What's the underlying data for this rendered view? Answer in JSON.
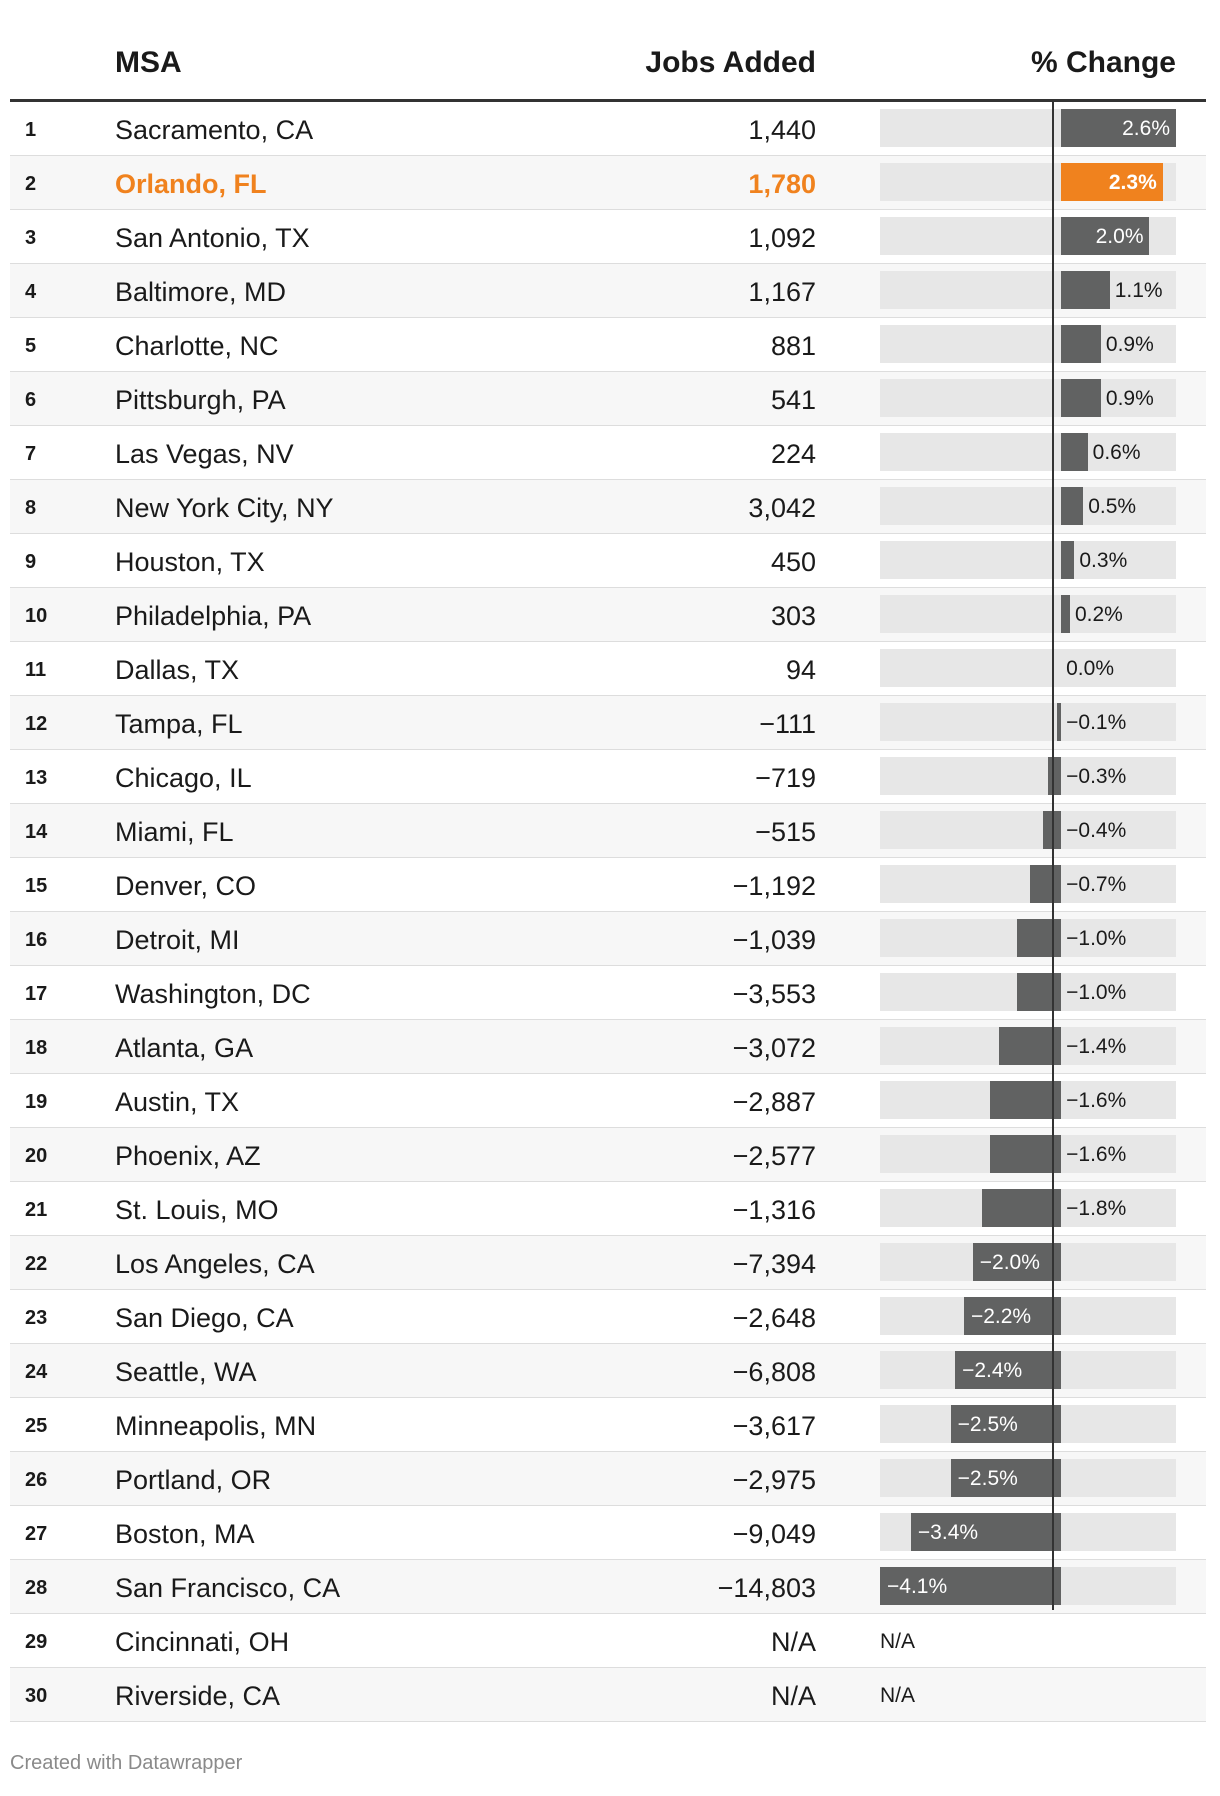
{
  "table": {
    "columns": {
      "msa": "MSA",
      "jobs": "Jobs Added",
      "pct": "% Change"
    },
    "highlight_color": "#f0821e",
    "bar_color": "#616262",
    "bar_bg_color": "#e7e7e7"
  },
  "chart_data": {
    "type": "table",
    "columns": [
      "MSA",
      "Jobs Added",
      "% Change"
    ],
    "pct_domain": [
      -4.1,
      2.6
    ],
    "rows": [
      {
        "rank": "1",
        "msa": "Sacramento, CA",
        "jobs": "1,440",
        "pct": 2.6,
        "pct_label": "2.6%"
      },
      {
        "rank": "2",
        "msa": "Orlando, FL",
        "jobs": "1,780",
        "pct": 2.3,
        "pct_label": "2.3%",
        "highlight": true
      },
      {
        "rank": "3",
        "msa": "San Antonio, TX",
        "jobs": "1,092",
        "pct": 2.0,
        "pct_label": "2.0%"
      },
      {
        "rank": "4",
        "msa": "Baltimore, MD",
        "jobs": "1,167",
        "pct": 1.1,
        "pct_label": "1.1%"
      },
      {
        "rank": "5",
        "msa": "Charlotte, NC",
        "jobs": "881",
        "pct": 0.9,
        "pct_label": "0.9%"
      },
      {
        "rank": "6",
        "msa": "Pittsburgh, PA",
        "jobs": "541",
        "pct": 0.9,
        "pct_label": "0.9%"
      },
      {
        "rank": "7",
        "msa": "Las Vegas, NV",
        "jobs": "224",
        "pct": 0.6,
        "pct_label": "0.6%"
      },
      {
        "rank": "8",
        "msa": "New York City, NY",
        "jobs": "3,042",
        "pct": 0.5,
        "pct_label": "0.5%"
      },
      {
        "rank": "9",
        "msa": "Houston, TX",
        "jobs": "450",
        "pct": 0.3,
        "pct_label": "0.3%"
      },
      {
        "rank": "10",
        "msa": "Philadelphia, PA",
        "jobs": "303",
        "pct": 0.2,
        "pct_label": "0.2%"
      },
      {
        "rank": "11",
        "msa": "Dallas, TX",
        "jobs": "94",
        "pct": 0.0,
        "pct_label": "0.0%"
      },
      {
        "rank": "12",
        "msa": "Tampa, FL",
        "jobs": "−111",
        "pct": -0.1,
        "pct_label": "−0.1%"
      },
      {
        "rank": "13",
        "msa": "Chicago, IL",
        "jobs": "−719",
        "pct": -0.3,
        "pct_label": "−0.3%"
      },
      {
        "rank": "14",
        "msa": "Miami, FL",
        "jobs": "−515",
        "pct": -0.4,
        "pct_label": "−0.4%"
      },
      {
        "rank": "15",
        "msa": "Denver, CO",
        "jobs": "−1,192",
        "pct": -0.7,
        "pct_label": "−0.7%"
      },
      {
        "rank": "16",
        "msa": "Detroit, MI",
        "jobs": "−1,039",
        "pct": -1.0,
        "pct_label": "−1.0%"
      },
      {
        "rank": "17",
        "msa": "Washington, DC",
        "jobs": "−3,553",
        "pct": -1.0,
        "pct_label": "−1.0%"
      },
      {
        "rank": "18",
        "msa": "Atlanta, GA",
        "jobs": "−3,072",
        "pct": -1.4,
        "pct_label": "−1.4%"
      },
      {
        "rank": "19",
        "msa": "Austin, TX",
        "jobs": "−2,887",
        "pct": -1.6,
        "pct_label": "−1.6%"
      },
      {
        "rank": "20",
        "msa": "Phoenix, AZ",
        "jobs": "−2,577",
        "pct": -1.6,
        "pct_label": "−1.6%"
      },
      {
        "rank": "21",
        "msa": "St. Louis, MO",
        "jobs": "−1,316",
        "pct": -1.8,
        "pct_label": "−1.8%"
      },
      {
        "rank": "22",
        "msa": "Los Angeles, CA",
        "jobs": "−7,394",
        "pct": -2.0,
        "pct_label": "−2.0%"
      },
      {
        "rank": "23",
        "msa": "San Diego, CA",
        "jobs": "−2,648",
        "pct": -2.2,
        "pct_label": "−2.2%"
      },
      {
        "rank": "24",
        "msa": "Seattle, WA",
        "jobs": "−6,808",
        "pct": -2.4,
        "pct_label": "−2.4%"
      },
      {
        "rank": "25",
        "msa": "Minneapolis, MN",
        "jobs": "−3,617",
        "pct": -2.5,
        "pct_label": "−2.5%"
      },
      {
        "rank": "26",
        "msa": "Portland, OR",
        "jobs": "−2,975",
        "pct": -2.5,
        "pct_label": "−2.5%"
      },
      {
        "rank": "27",
        "msa": "Boston, MA",
        "jobs": "−9,049",
        "pct": -3.4,
        "pct_label": "−3.4%"
      },
      {
        "rank": "28",
        "msa": "San Francisco, CA",
        "jobs": "−14,803",
        "pct": -4.1,
        "pct_label": "−4.1%"
      },
      {
        "rank": "29",
        "msa": "Cincinnati, OH",
        "jobs": "N/A",
        "pct": null,
        "pct_label": "N/A"
      },
      {
        "rank": "30",
        "msa": "Riverside, CA",
        "jobs": "N/A",
        "pct": null,
        "pct_label": "N/A"
      }
    ]
  },
  "footer": {
    "credit": "Created with Datawrapper"
  }
}
